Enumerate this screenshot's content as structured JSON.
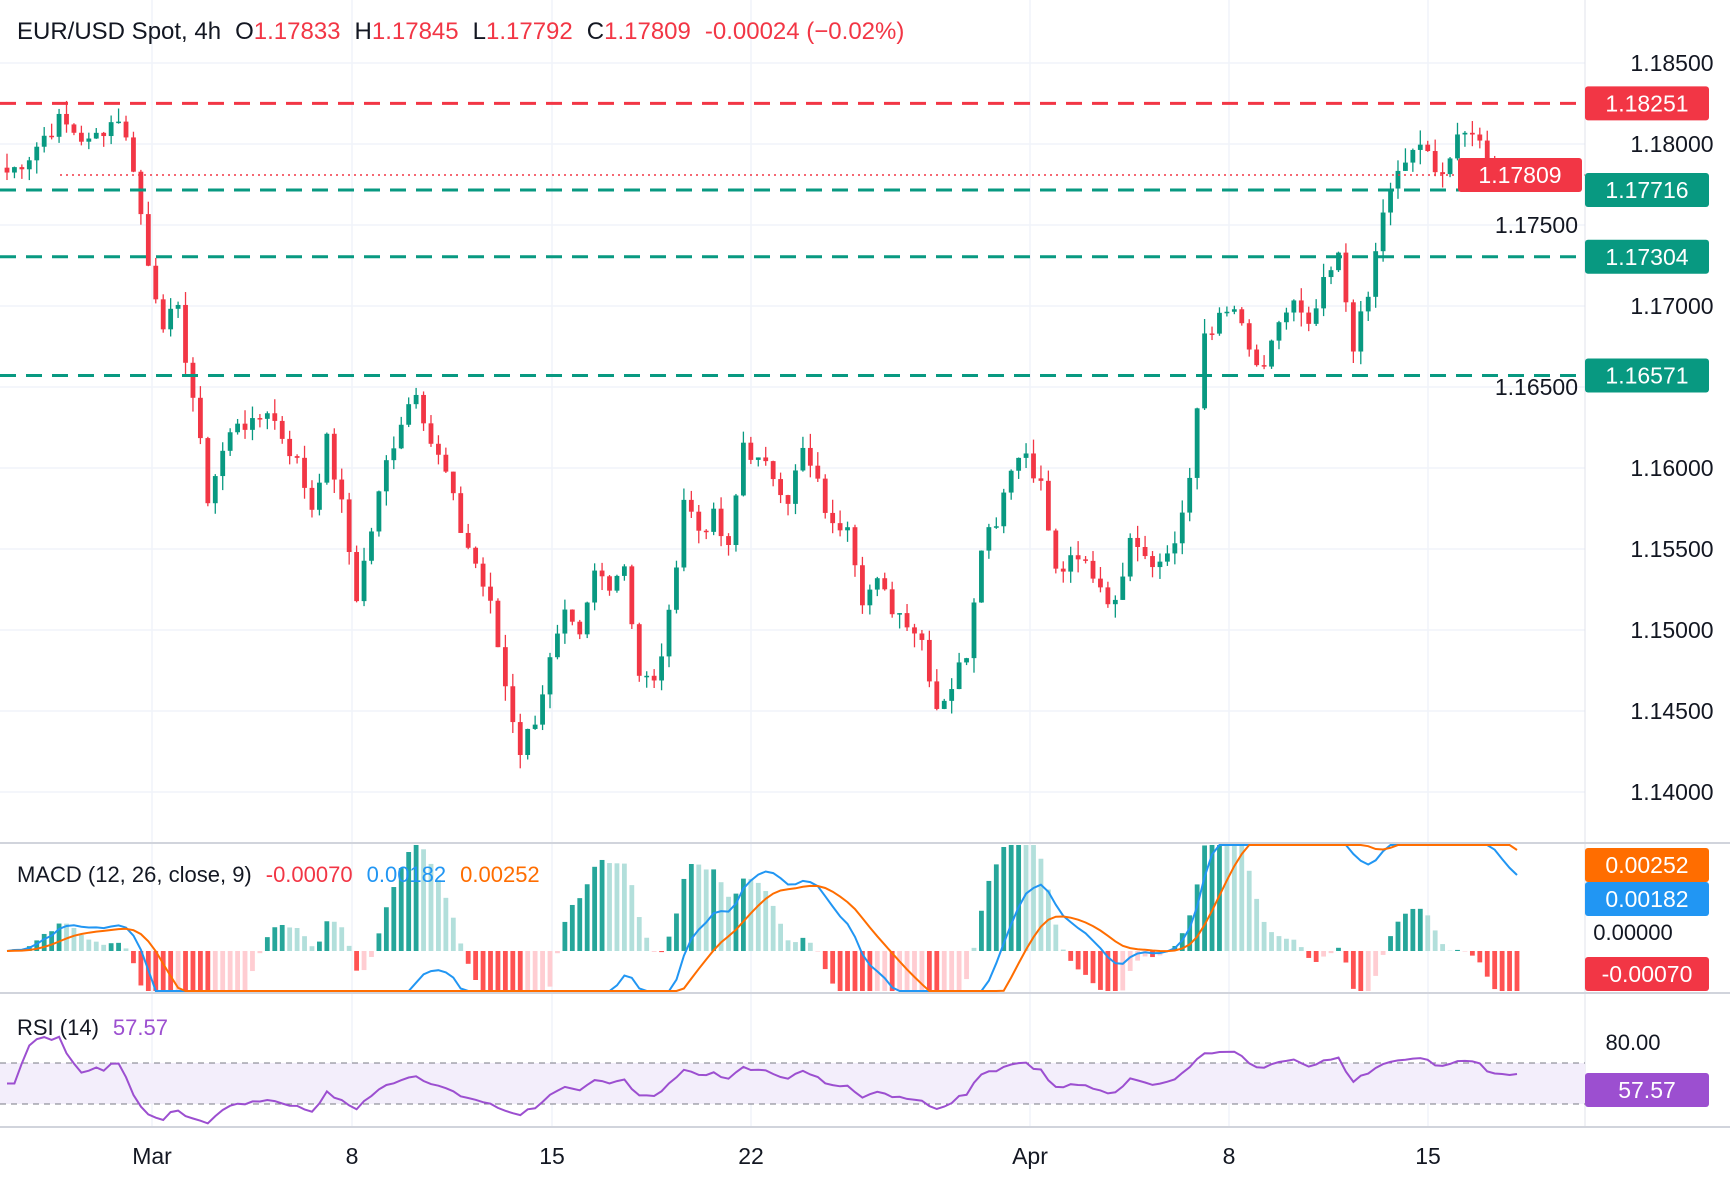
{
  "header": {
    "symbol": "EUR/USD Spot, 4h",
    "o_label": "O",
    "o": "1.17833",
    "h_label": "H",
    "h": "1.17845",
    "l_label": "L",
    "l": "1.17792",
    "c_label": "C",
    "c": "1.17809",
    "change": "-0.00024 (−0.02%)"
  },
  "macd": {
    "label": "MACD (12, 26, close, 9)",
    "hist": "-0.00070",
    "macd": "0.00182",
    "signal": "0.00252",
    "zero_label": "0.00000"
  },
  "rsi": {
    "label": "RSI (14)",
    "value": "57.57",
    "axis_label": "80.00",
    "band": [
      30,
      70
    ]
  },
  "colors": {
    "up": "#089981",
    "down": "#f23645",
    "macd": "#2196f3",
    "signal": "#ff6d00",
    "rsi": "#9c4fd0",
    "resistance": "#f23645",
    "support": "#089981"
  },
  "chart_data": {
    "type": "candlestick",
    "title": "EUR/USD Spot, 4h",
    "ylim": [
      1.1375,
      1.1875
    ],
    "y_ticks": [
      "1.18500",
      "1.18000",
      "1.17500",
      "1.17000",
      "1.16500",
      "1.16000",
      "1.15500",
      "1.15000",
      "1.14500",
      "1.14000"
    ],
    "x_ticks": [
      "Mar",
      "8",
      "15",
      "22",
      "Apr",
      "8",
      "15"
    ],
    "grid": true,
    "last_price": "1.17809",
    "levels": [
      {
        "value": 1.18251,
        "label": "1.18251",
        "kind": "resistance"
      },
      {
        "value": 1.17716,
        "label": "1.17716",
        "kind": "support"
      },
      {
        "value": 1.17304,
        "label": "1.17304",
        "kind": "support"
      },
      {
        "value": 1.16571,
        "label": "1.16571",
        "kind": "support"
      }
    ],
    "closes": [
      1.178,
      1.1785,
      1.1793,
      1.1805,
      1.1814,
      1.1808,
      1.18,
      1.181,
      1.1817,
      1.1787,
      1.1725,
      1.1691,
      1.1695,
      1.1644,
      1.1582,
      1.161,
      1.163,
      1.1625,
      1.1637,
      1.162,
      1.1603,
      1.1576,
      1.1616,
      1.1576,
      1.1521,
      1.1562,
      1.1603,
      1.163,
      1.165,
      1.1616,
      1.1596,
      1.1562,
      1.1541,
      1.1514,
      1.1466,
      1.1426,
      1.1446,
      1.148,
      1.1507,
      1.1493,
      1.1535,
      1.153,
      1.1541,
      1.1473,
      1.1466,
      1.1507,
      1.1582,
      1.1562,
      1.1569,
      1.1548,
      1.1616,
      1.1603,
      1.1596,
      1.1582,
      1.161,
      1.1589,
      1.1562,
      1.1569,
      1.1521,
      1.1528,
      1.1514,
      1.1507,
      1.1494,
      1.1453,
      1.1466,
      1.1487,
      1.1555,
      1.1569,
      1.1603,
      1.161,
      1.1589,
      1.1535,
      1.1541,
      1.1541,
      1.1528,
      1.1514,
      1.1562,
      1.1548,
      1.1541,
      1.1555,
      1.1589,
      1.1684,
      1.1691,
      1.1698,
      1.1671,
      1.1657,
      1.1691,
      1.1701,
      1.1684,
      1.1712,
      1.1729,
      1.1677,
      1.1705,
      1.1759,
      1.178,
      1.1797,
      1.1793,
      1.1783,
      1.18,
      1.181,
      1.179,
      1.178,
      1.1781
    ]
  }
}
